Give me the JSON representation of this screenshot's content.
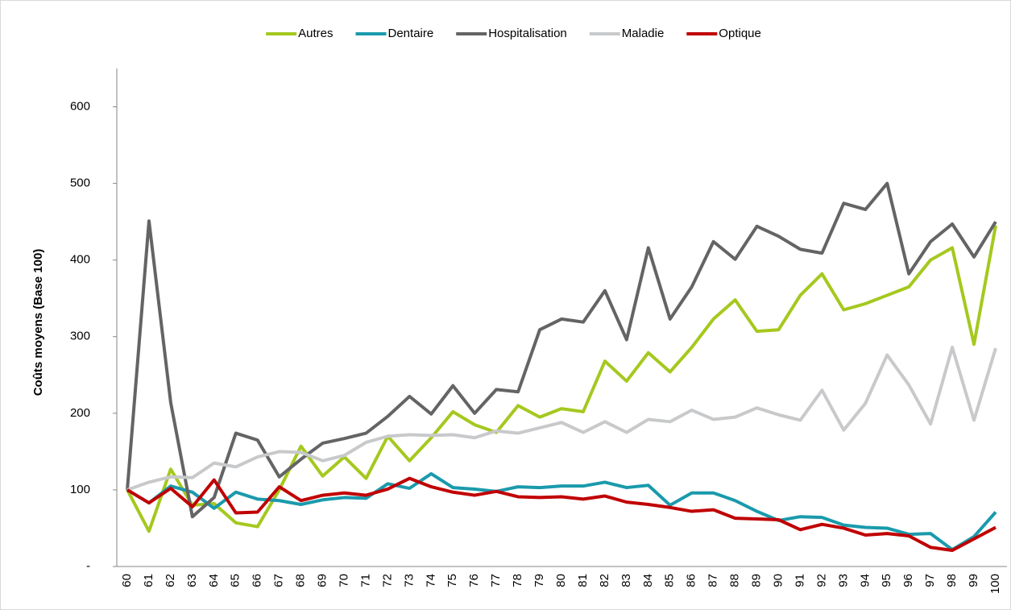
{
  "chart_data": {
    "type": "line",
    "y_label": "Coûts moyens (Base 100)",
    "categories": [
      60,
      61,
      62,
      63,
      64,
      65,
      66,
      67,
      68,
      69,
      70,
      71,
      72,
      73,
      74,
      75,
      76,
      77,
      78,
      79,
      80,
      81,
      82,
      83,
      84,
      85,
      86,
      87,
      88,
      89,
      90,
      91,
      92,
      93,
      94,
      95,
      96,
      97,
      98,
      99,
      100
    ],
    "ylim": [
      0,
      650
    ],
    "yticks": [
      {
        "value": 0,
        "label": "-"
      },
      100,
      200,
      300,
      400,
      500,
      600
    ],
    "grid": false,
    "legend": "top",
    "series": [
      {
        "name": "Autres",
        "color": "#a5c81e",
        "values": [
          100,
          46,
          127,
          80,
          82,
          57,
          52,
          100,
          157,
          118,
          143,
          115,
          170,
          138,
          168,
          202,
          185,
          175,
          210,
          195,
          206,
          202,
          268,
          242,
          279,
          254,
          286,
          323,
          348,
          307,
          309,
          354,
          382,
          335,
          343,
          354,
          365,
          400,
          416,
          290,
          445
        ]
      },
      {
        "name": "Dentaire",
        "color": "#1a9aac",
        "values": [
          100,
          83,
          105,
          97,
          76,
          97,
          88,
          86,
          81,
          87,
          90,
          89,
          108,
          102,
          121,
          103,
          101,
          98,
          104,
          103,
          105,
          105,
          110,
          103,
          106,
          80,
          96,
          96,
          86,
          72,
          60,
          65,
          64,
          54,
          51,
          50,
          42,
          43,
          22,
          39,
          71
        ]
      },
      {
        "name": "Hospitalisation",
        "color": "#646466",
        "values": [
          100,
          451,
          214,
          65,
          90,
          174,
          165,
          117,
          140,
          161,
          167,
          174,
          196,
          222,
          199,
          236,
          200,
          231,
          228,
          309,
          323,
          319,
          360,
          296,
          416,
          323,
          365,
          424,
          401,
          444,
          431,
          414,
          409,
          474,
          466,
          500,
          382,
          424,
          447,
          404,
          450
        ]
      },
      {
        "name": "Maladie",
        "color": "#c8c9cb",
        "values": [
          100,
          110,
          117,
          116,
          135,
          130,
          143,
          150,
          149,
          138,
          145,
          162,
          170,
          172,
          171,
          172,
          168,
          177,
          174,
          181,
          188,
          175,
          189,
          175,
          192,
          189,
          204,
          192,
          195,
          207,
          198,
          191,
          230,
          178,
          213,
          276,
          237,
          186,
          286,
          191,
          285
        ]
      },
      {
        "name": "Optique",
        "color": "#c00000",
        "values": [
          100,
          83,
          102,
          78,
          113,
          70,
          71,
          104,
          86,
          93,
          96,
          93,
          101,
          115,
          104,
          97,
          93,
          98,
          91,
          90,
          91,
          88,
          92,
          84,
          81,
          77,
          72,
          74,
          63,
          62,
          61,
          48,
          55,
          50,
          41,
          43,
          40,
          25,
          21,
          36,
          51
        ]
      }
    ]
  }
}
